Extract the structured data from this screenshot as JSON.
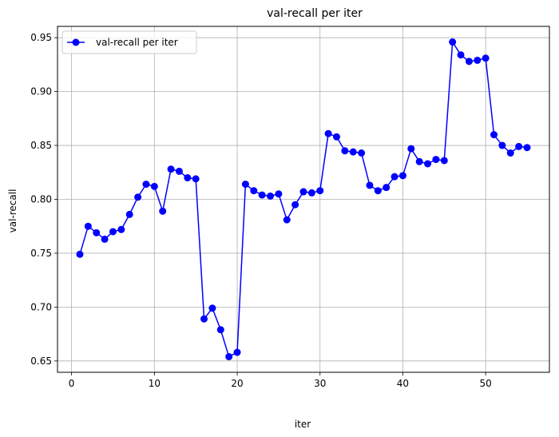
{
  "chart_data": {
    "type": "line",
    "title": "val-recall per iter",
    "xlabel": "iter",
    "ylabel": "val-recall",
    "xlim": [
      -1.7,
      57.7
    ],
    "ylim": [
      0.6395,
      0.9605
    ],
    "xticks": [
      0,
      10,
      20,
      30,
      40,
      50
    ],
    "yticks": [
      0.65,
      0.7,
      0.75,
      0.8,
      0.85,
      0.9,
      0.95
    ],
    "ytick_labels": [
      "0.65",
      "0.70",
      "0.75",
      "0.80",
      "0.85",
      "0.90",
      "0.95"
    ],
    "grid": true,
    "legend_position": "upper-left",
    "series": [
      {
        "name": "val-recall per iter",
        "color": "#0000ff",
        "marker": "circle",
        "x": [
          1,
          2,
          3,
          4,
          5,
          6,
          7,
          8,
          9,
          10,
          11,
          12,
          13,
          14,
          15,
          16,
          17,
          18,
          19,
          20,
          21,
          22,
          23,
          24,
          25,
          26,
          27,
          28,
          29,
          30,
          31,
          32,
          33,
          34,
          35,
          36,
          37,
          38,
          39,
          40,
          41,
          42,
          43,
          44,
          45,
          46,
          47,
          48,
          49,
          50,
          51,
          52,
          53,
          54,
          55
        ],
        "y": [
          0.749,
          0.775,
          0.769,
          0.763,
          0.77,
          0.772,
          0.786,
          0.802,
          0.814,
          0.812,
          0.789,
          0.828,
          0.826,
          0.82,
          0.819,
          0.689,
          0.699,
          0.679,
          0.654,
          0.658,
          0.814,
          0.808,
          0.804,
          0.803,
          0.805,
          0.781,
          0.795,
          0.807,
          0.806,
          0.808,
          0.861,
          0.858,
          0.845,
          0.844,
          0.843,
          0.813,
          0.808,
          0.811,
          0.821,
          0.822,
          0.847,
          0.835,
          0.833,
          0.837,
          0.836,
          0.946,
          0.934,
          0.928,
          0.929,
          0.931,
          0.86,
          0.85,
          0.843,
          0.849,
          0.848
        ]
      }
    ]
  }
}
